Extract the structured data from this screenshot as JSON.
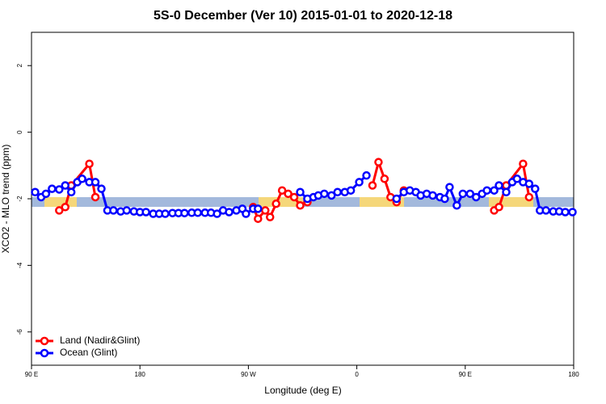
{
  "chart_data": {
    "type": "line",
    "title": "5S-0 December (Ver 10)   2015-01-01 to 2020-12-18",
    "x_label": "Longitude (deg E)",
    "y_label": "XCO2 - MLO trend (ppm)",
    "xlim": [
      90,
      540
    ],
    "xticks": [
      {
        "value": 90,
        "label": "90 E"
      },
      180,
      {
        "value": 270,
        "label": "90 W"
      },
      {
        "value": 360,
        "label": "0"
      },
      {
        "value": 450,
        "label": "90 E"
      },
      {
        "value": 540,
        "label": "180"
      }
    ],
    "ylim": [
      -7,
      3
    ],
    "yticks": [
      -6,
      -4,
      -2,
      0,
      2
    ],
    "legend": "bottom-left",
    "series": [
      {
        "name": "Land (Nadir&Glint)",
        "color": "#ff0000",
        "x": [
          113,
          118,
          123,
          138,
          143,
          200,
          274,
          278,
          284,
          288,
          293,
          298,
          303,
          308,
          313,
          319,
          340,
          373,
          378,
          383,
          388,
          393,
          399,
          450,
          474,
          478,
          484,
          498,
          503
        ],
        "values": [
          -2.35,
          -2.25,
          -1.6,
          -0.95,
          -1.95,
          null,
          -2.25,
          -2.6,
          -2.35,
          -2.55,
          -2.15,
          -1.75,
          -1.85,
          -1.95,
          -2.2,
          -2.1,
          null,
          -1.6,
          -0.9,
          -1.4,
          -1.95,
          -2.1,
          -1.75,
          null,
          -2.35,
          -2.25,
          -1.6,
          -0.95,
          -1.95
        ]
      },
      {
        "name": "Ocean (Glint)",
        "color": "#0000ff",
        "x": [
          93,
          98,
          102,
          107,
          113,
          118,
          123,
          128,
          132,
          138,
          143,
          148,
          153,
          158,
          164,
          169,
          175,
          180,
          185,
          191,
          196,
          201,
          207,
          212,
          217,
          223,
          228,
          234,
          239,
          244,
          249,
          254,
          260,
          265,
          268,
          274,
          278,
          295,
          313,
          319,
          324,
          328,
          333,
          339,
          344,
          350,
          355,
          362,
          368,
          380,
          393,
          399,
          404,
          409,
          413,
          418,
          423,
          429,
          433,
          437,
          443,
          448,
          454,
          459,
          464,
          468,
          474,
          478,
          484,
          489,
          493,
          498,
          503,
          508,
          512,
          517,
          523,
          528,
          533,
          539
        ],
        "values": [
          -1.8,
          -1.95,
          -1.85,
          -1.7,
          -1.72,
          -1.6,
          -1.8,
          -1.5,
          -1.4,
          -1.5,
          -1.5,
          -1.7,
          -2.35,
          -2.35,
          -2.38,
          -2.35,
          -2.38,
          -2.4,
          -2.4,
          -2.45,
          -2.45,
          -2.45,
          -2.43,
          -2.43,
          -2.43,
          -2.42,
          -2.42,
          -2.42,
          -2.42,
          -2.45,
          -2.35,
          -2.4,
          -2.35,
          -2.3,
          -2.45,
          -2.3,
          -2.3,
          null,
          -1.8,
          -2.0,
          -1.95,
          -1.9,
          -1.85,
          -1.9,
          -1.8,
          -1.8,
          -1.75,
          -1.5,
          -1.3,
          null,
          -2.0,
          -1.8,
          -1.75,
          -1.8,
          -1.9,
          -1.85,
          -1.9,
          -1.95,
          -2.0,
          -1.65,
          -2.2,
          -1.85,
          -1.85,
          -1.95,
          -1.85,
          -1.75,
          -1.75,
          -1.6,
          -1.8,
          -1.5,
          -1.4,
          -1.5,
          -1.55,
          -1.7,
          -2.35,
          -2.35,
          -2.38,
          -2.38,
          -2.4,
          -2.4
        ]
      }
    ]
  }
}
